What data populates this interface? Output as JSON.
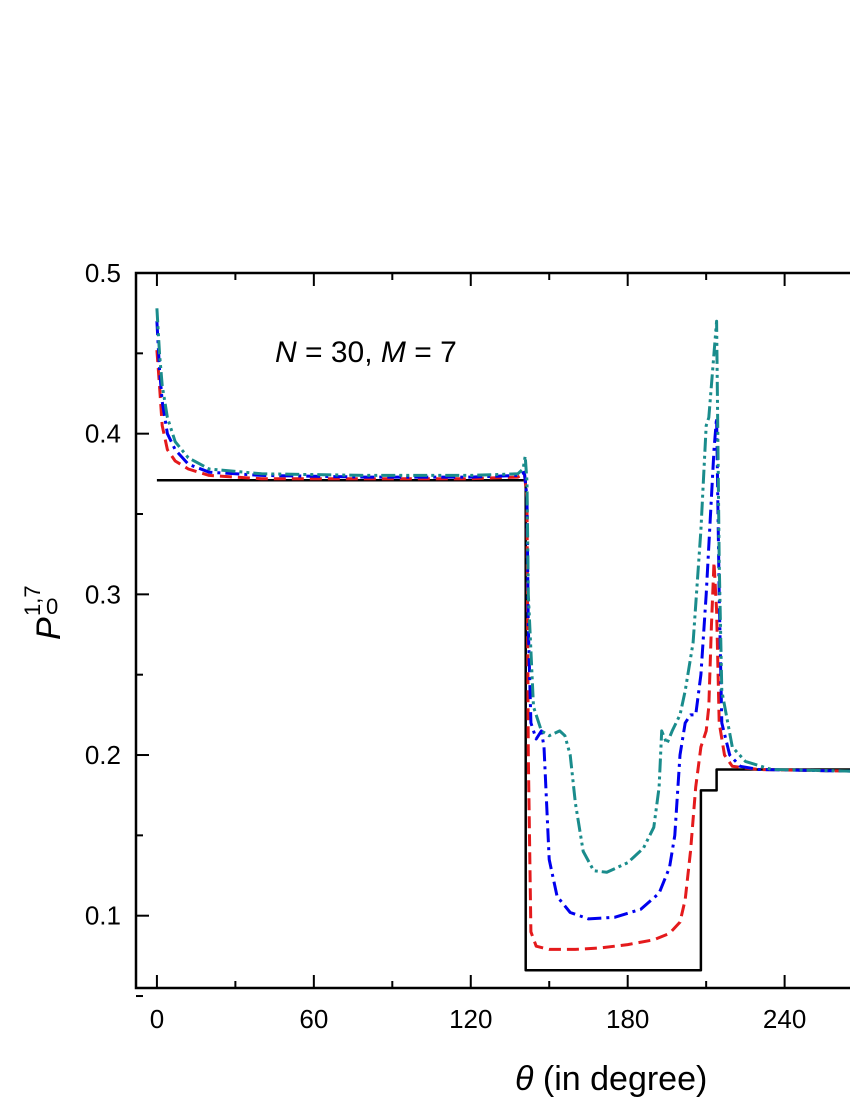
{
  "chart_data": {
    "type": "line",
    "xlabel_symbol": "θ",
    "xlabel_text": " (in degree)",
    "ylabel_main": "P",
    "ylabel_sup": "1,7",
    "ylabel_sub": "0",
    "annotation": {
      "n_symbol": "N",
      "n_eq": " = 30,  ",
      "m_symbol": "M",
      "m_eq": " = 7"
    },
    "xlim": [
      -8,
      265
    ],
    "ylim": [
      0.055,
      0.5
    ],
    "xticks": [
      0,
      60,
      120,
      180,
      240
    ],
    "yticks": [
      0.1,
      0.2,
      0.3,
      0.4,
      0.5
    ],
    "xtick_labels": [
      "0",
      "60",
      "120",
      "180",
      "240"
    ],
    "ytick_labels": [
      "0.1",
      "0.2",
      "0.3",
      "0.4",
      "0.5"
    ],
    "grid": false,
    "series": [
      {
        "color": "#000000",
        "style": "solid",
        "points": [
          [
            0,
            0.371
          ],
          [
            141,
            0.371
          ],
          [
            141,
            0.066
          ],
          [
            208,
            0.066
          ],
          [
            208,
            0.178
          ],
          [
            214,
            0.178
          ],
          [
            214,
            0.191
          ],
          [
            265,
            0.191
          ]
        ]
      },
      {
        "color": "#e41a1c",
        "style": "dashed",
        "points": [
          [
            0,
            0.452
          ],
          [
            1,
            0.43
          ],
          [
            2,
            0.405
          ],
          [
            4,
            0.39
          ],
          [
            7,
            0.383
          ],
          [
            12,
            0.378
          ],
          [
            20,
            0.374
          ],
          [
            40,
            0.372
          ],
          [
            80,
            0.372
          ],
          [
            120,
            0.372
          ],
          [
            138,
            0.373
          ],
          [
            140.5,
            0.375
          ],
          [
            141.5,
            0.36
          ],
          [
            142,
            0.2
          ],
          [
            143,
            0.09
          ],
          [
            145,
            0.081
          ],
          [
            150,
            0.079
          ],
          [
            160,
            0.079
          ],
          [
            170,
            0.08
          ],
          [
            180,
            0.082
          ],
          [
            190,
            0.085
          ],
          [
            196,
            0.089
          ],
          [
            200,
            0.096
          ],
          [
            202,
            0.11
          ],
          [
            204,
            0.14
          ],
          [
            206,
            0.18
          ],
          [
            208,
            0.205
          ],
          [
            210,
            0.215
          ],
          [
            211,
            0.23
          ],
          [
            212,
            0.28
          ],
          [
            213,
            0.32
          ],
          [
            214,
            0.29
          ],
          [
            215,
            0.22
          ],
          [
            217,
            0.2
          ],
          [
            220,
            0.193
          ],
          [
            230,
            0.191
          ],
          [
            265,
            0.19
          ]
        ]
      },
      {
        "color": "#0000ee",
        "style": "dashdot",
        "points": [
          [
            0,
            0.47
          ],
          [
            1,
            0.44
          ],
          [
            2,
            0.42
          ],
          [
            4,
            0.4
          ],
          [
            7,
            0.39
          ],
          [
            12,
            0.381
          ],
          [
            20,
            0.376
          ],
          [
            40,
            0.374
          ],
          [
            80,
            0.373
          ],
          [
            120,
            0.373
          ],
          [
            138,
            0.374
          ],
          [
            140.5,
            0.376
          ],
          [
            141.5,
            0.36
          ],
          [
            142,
            0.28
          ],
          [
            143,
            0.22
          ],
          [
            145,
            0.21
          ],
          [
            147,
            0.215
          ],
          [
            148,
            0.205
          ],
          [
            149,
            0.17
          ],
          [
            150,
            0.135
          ],
          [
            153,
            0.112
          ],
          [
            158,
            0.102
          ],
          [
            165,
            0.098
          ],
          [
            175,
            0.099
          ],
          [
            185,
            0.104
          ],
          [
            192,
            0.114
          ],
          [
            196,
            0.13
          ],
          [
            198,
            0.15
          ],
          [
            200,
            0.2
          ],
          [
            202,
            0.22
          ],
          [
            204,
            0.225
          ],
          [
            206,
            0.225
          ],
          [
            208,
            0.25
          ],
          [
            210,
            0.3
          ],
          [
            212,
            0.36
          ],
          [
            213,
            0.39
          ],
          [
            214,
            0.41
          ],
          [
            215,
            0.3
          ],
          [
            216,
            0.22
          ],
          [
            219,
            0.2
          ],
          [
            223,
            0.193
          ],
          [
            230,
            0.191
          ],
          [
            265,
            0.19
          ]
        ]
      },
      {
        "color": "#1a8c8c",
        "style": "dashdotdot",
        "points": [
          [
            0,
            0.478
          ],
          [
            1,
            0.45
          ],
          [
            2,
            0.43
          ],
          [
            4,
            0.41
          ],
          [
            7,
            0.395
          ],
          [
            12,
            0.385
          ],
          [
            20,
            0.378
          ],
          [
            40,
            0.375
          ],
          [
            80,
            0.374
          ],
          [
            120,
            0.374
          ],
          [
            138,
            0.375
          ],
          [
            140,
            0.378
          ],
          [
            140.8,
            0.386
          ],
          [
            141.5,
            0.37
          ],
          [
            142,
            0.3
          ],
          [
            144,
            0.23
          ],
          [
            147,
            0.215
          ],
          [
            150,
            0.212
          ],
          [
            154,
            0.215
          ],
          [
            156,
            0.212
          ],
          [
            158,
            0.2
          ],
          [
            160,
            0.17
          ],
          [
            163,
            0.14
          ],
          [
            167,
            0.128
          ],
          [
            172,
            0.127
          ],
          [
            180,
            0.133
          ],
          [
            186,
            0.142
          ],
          [
            190,
            0.155
          ],
          [
            192,
            0.18
          ],
          [
            193,
            0.215
          ],
          [
            195,
            0.207
          ],
          [
            197,
            0.215
          ],
          [
            200,
            0.225
          ],
          [
            202,
            0.24
          ],
          [
            205,
            0.27
          ],
          [
            208,
            0.34
          ],
          [
            210,
            0.405
          ],
          [
            211,
            0.41
          ],
          [
            212,
            0.43
          ],
          [
            213,
            0.45
          ],
          [
            214,
            0.47
          ],
          [
            215,
            0.32
          ],
          [
            216,
            0.24
          ],
          [
            220,
            0.205
          ],
          [
            225,
            0.196
          ],
          [
            235,
            0.191
          ],
          [
            265,
            0.19
          ]
        ]
      }
    ]
  }
}
